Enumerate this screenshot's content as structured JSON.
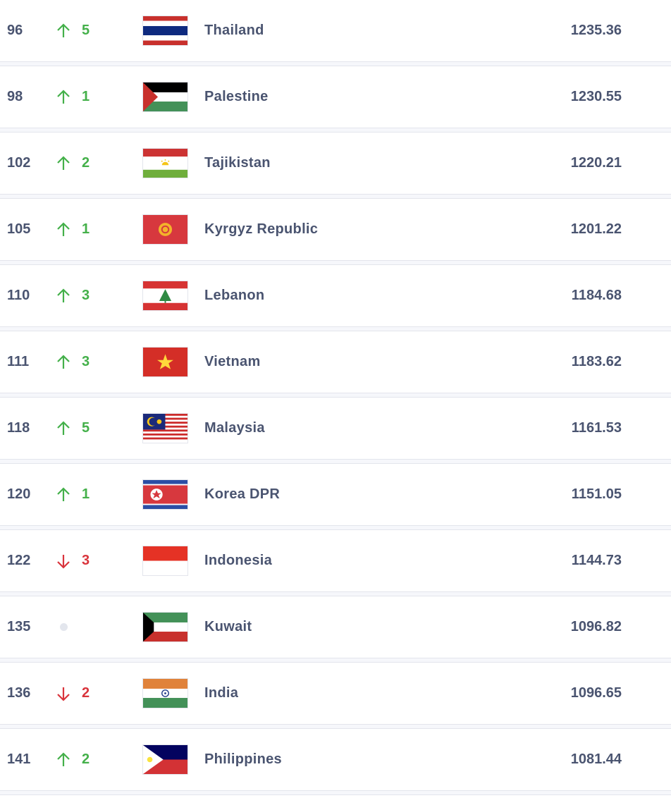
{
  "colors": {
    "up": "#44b04a",
    "down": "#d9343c",
    "text": "#4a5470",
    "neutral": "#e3e6ed"
  },
  "rows": [
    {
      "rank": "96",
      "trend": "up",
      "change": "5",
      "flag": "thailand-flag",
      "name": "Thailand",
      "points": "1235.36"
    },
    {
      "rank": "98",
      "trend": "up",
      "change": "1",
      "flag": "palestine-flag",
      "name": "Palestine",
      "points": "1230.55"
    },
    {
      "rank": "102",
      "trend": "up",
      "change": "2",
      "flag": "tajikistan-flag",
      "name": "Tajikistan",
      "points": "1220.21"
    },
    {
      "rank": "105",
      "trend": "up",
      "change": "1",
      "flag": "kyrgyz-republic-flag",
      "name": "Kyrgyz Republic",
      "points": "1201.22"
    },
    {
      "rank": "110",
      "trend": "up",
      "change": "3",
      "flag": "lebanon-flag",
      "name": "Lebanon",
      "points": "1184.68"
    },
    {
      "rank": "111",
      "trend": "up",
      "change": "3",
      "flag": "vietnam-flag",
      "name": "Vietnam",
      "points": "1183.62"
    },
    {
      "rank": "118",
      "trend": "up",
      "change": "5",
      "flag": "malaysia-flag",
      "name": "Malaysia",
      "points": "1161.53"
    },
    {
      "rank": "120",
      "trend": "up",
      "change": "1",
      "flag": "korea-dpr-flag",
      "name": "Korea DPR",
      "points": "1151.05"
    },
    {
      "rank": "122",
      "trend": "down",
      "change": "3",
      "flag": "indonesia-flag",
      "name": "Indonesia",
      "points": "1144.73"
    },
    {
      "rank": "135",
      "trend": "same",
      "change": "",
      "flag": "kuwait-flag",
      "name": "Kuwait",
      "points": "1096.82"
    },
    {
      "rank": "136",
      "trend": "down",
      "change": "2",
      "flag": "india-flag",
      "name": "India",
      "points": "1096.65"
    },
    {
      "rank": "141",
      "trend": "up",
      "change": "2",
      "flag": "philippines-flag",
      "name": "Philippines",
      "points": "1081.44"
    }
  ]
}
